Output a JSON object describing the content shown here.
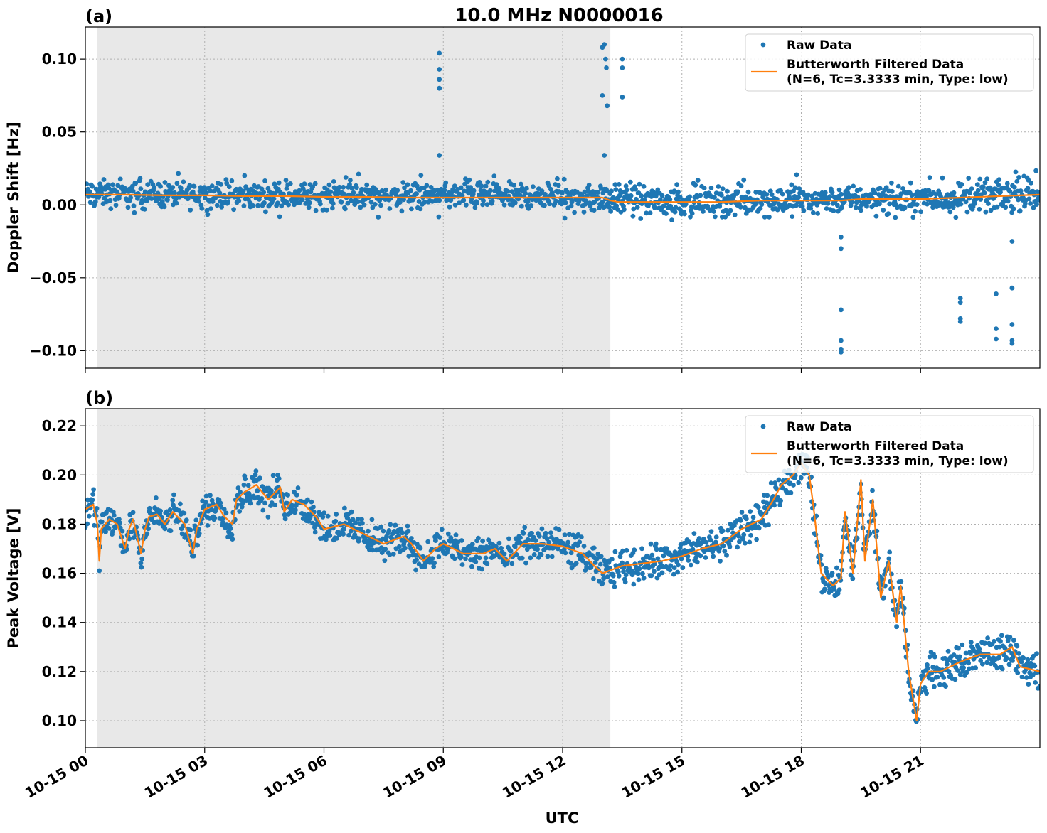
{
  "title": "10.0 MHz N0000016",
  "xlabel": "UTC",
  "x_tick_labels": [
    "10-15 00",
    "10-15 03",
    "10-15 06",
    "10-15 09",
    "10-15 12",
    "10-15 15",
    "10-15 18",
    "10-15 21"
  ],
  "legend": {
    "raw": "Raw Data",
    "filtered_line1": "Butterworth Filtered Data",
    "filtered_line2": "(N=6, Tc=3.3333 min, Type: low)"
  },
  "colors": {
    "raw": "#1f77b4",
    "filtered": "#ff7f0e",
    "shade": "#e8e8e8",
    "grid": "#b0b0b0"
  },
  "chart_data": [
    {
      "type": "scatter",
      "panel_label": "(a)",
      "title": "10.0 MHz N0000016",
      "ylabel": "Doppler Shift [Hz]",
      "xlabel": "",
      "x_unit": "hours UTC on 10-15",
      "xlim": [
        0,
        24
      ],
      "ylim": [
        -0.112,
        0.122
      ],
      "y_ticks": [
        -0.1,
        -0.05,
        0.0,
        0.05,
        0.1
      ],
      "y_tick_labels": [
        "−0.10",
        "−0.05",
        "0.00",
        "0.05",
        "0.10"
      ],
      "shaded_region": [
        0.3,
        13.2
      ],
      "grid": true,
      "legend_position": "top-right",
      "series": [
        {
          "name": "Butterworth Filtered Data",
          "x": [
            0,
            1,
            2,
            3,
            4,
            5,
            6,
            7,
            8,
            8.9,
            9.5,
            10,
            11,
            12,
            13,
            13.2,
            13.4,
            14,
            15,
            16,
            17,
            18,
            19,
            19.5,
            20,
            21,
            22,
            23,
            24
          ],
          "y": [
            0.007,
            0.007,
            0.0065,
            0.0065,
            0.006,
            0.006,
            0.0055,
            0.0055,
            0.005,
            0.005,
            0.005,
            0.005,
            0.005,
            0.005,
            0.005,
            0.003,
            0.002,
            0.002,
            0.002,
            0.002,
            0.003,
            0.003,
            0.003,
            0.004,
            0.004,
            0.004,
            0.005,
            0.006,
            0.007
          ]
        },
        {
          "name": "Raw Data",
          "band_x": [
            0,
            3,
            6,
            9,
            12,
            13.2,
            15,
            18,
            21,
            24
          ],
          "band_lo": [
            -0.006,
            -0.006,
            -0.007,
            -0.006,
            -0.007,
            -0.01,
            -0.012,
            -0.01,
            -0.01,
            -0.008
          ],
          "band_hi": [
            0.021,
            0.02,
            0.019,
            0.019,
            0.018,
            0.018,
            0.016,
            0.018,
            0.018,
            0.023
          ],
          "outliers_x": [
            8.9,
            8.9,
            8.9,
            8.9,
            8.9,
            13.0,
            13.05,
            13.08,
            13.1,
            13.12,
            13.0,
            13.05,
            13.5,
            13.5,
            13.5,
            19.0,
            19.0,
            19.0,
            19.0,
            19.0,
            19.0,
            22.0,
            22.0,
            22.0,
            22.0,
            22.9,
            22.9,
            22.9,
            23.3,
            23.3,
            23.3,
            23.3,
            23.3
          ],
          "outliers_y": [
            0.104,
            0.093,
            0.086,
            0.08,
            0.034,
            0.108,
            0.11,
            0.1,
            0.094,
            0.068,
            0.075,
            0.034,
            0.1,
            0.094,
            0.074,
            -0.022,
            -0.03,
            -0.072,
            -0.093,
            -0.099,
            -0.101,
            -0.064,
            -0.067,
            -0.078,
            -0.08,
            -0.061,
            -0.085,
            -0.092,
            -0.025,
            -0.057,
            -0.082,
            -0.093,
            -0.095
          ]
        }
      ]
    },
    {
      "type": "scatter",
      "panel_label": "(b)",
      "title": "",
      "ylabel": "Peak Voltage [V]",
      "xlabel": "UTC",
      "x_unit": "hours UTC on 10-15",
      "xlim": [
        0,
        24
      ],
      "ylim": [
        0.089,
        0.227
      ],
      "y_ticks": [
        0.1,
        0.12,
        0.14,
        0.16,
        0.18,
        0.2,
        0.22
      ],
      "y_tick_labels": [
        "0.10",
        "0.12",
        "0.14",
        "0.16",
        "0.18",
        "0.20",
        "0.22"
      ],
      "shaded_region": [
        0.3,
        13.2
      ],
      "grid": true,
      "legend_position": "top-right",
      "series": [
        {
          "name": "Butterworth Filtered Data",
          "x": [
            0,
            0.2,
            0.3,
            0.35,
            0.4,
            0.6,
            0.8,
            1.0,
            1.1,
            1.2,
            1.4,
            1.5,
            1.6,
            1.8,
            2.0,
            2.2,
            2.5,
            2.7,
            2.8,
            3.0,
            3.3,
            3.5,
            3.7,
            3.8,
            4.0,
            4.3,
            4.6,
            4.9,
            5.0,
            5.2,
            5.5,
            5.8,
            6.0,
            6.5,
            7.0,
            7.5,
            8.0,
            8.2,
            8.5,
            8.8,
            9.0,
            9.5,
            10.0,
            10.3,
            10.6,
            11.0,
            11.5,
            12.0,
            12.5,
            12.8,
            13.0,
            13.5,
            14.0,
            14.5,
            15.0,
            15.5,
            16.0,
            16.5,
            17.0,
            17.3,
            17.5,
            17.8,
            18.0,
            18.2,
            18.3,
            18.5,
            18.8,
            19.0,
            19.1,
            19.3,
            19.5,
            19.6,
            19.8,
            20.0,
            20.2,
            20.4,
            20.5,
            20.7,
            20.9,
            21.0,
            21.2,
            21.5,
            22.0,
            22.5,
            23.0,
            23.3,
            23.5,
            24.0
          ],
          "y": [
            0.186,
            0.188,
            0.18,
            0.165,
            0.178,
            0.182,
            0.18,
            0.17,
            0.178,
            0.182,
            0.168,
            0.178,
            0.183,
            0.184,
            0.18,
            0.185,
            0.18,
            0.168,
            0.178,
            0.186,
            0.188,
            0.183,
            0.18,
            0.19,
            0.193,
            0.196,
            0.19,
            0.195,
            0.185,
            0.19,
            0.188,
            0.183,
            0.178,
            0.18,
            0.176,
            0.172,
            0.175,
            0.172,
            0.165,
            0.17,
            0.172,
            0.168,
            0.168,
            0.17,
            0.165,
            0.172,
            0.172,
            0.171,
            0.168,
            0.163,
            0.16,
            0.163,
            0.164,
            0.165,
            0.167,
            0.17,
            0.172,
            0.178,
            0.182,
            0.19,
            0.196,
            0.2,
            0.205,
            0.2,
            0.188,
            0.16,
            0.155,
            0.158,
            0.185,
            0.16,
            0.198,
            0.165,
            0.19,
            0.15,
            0.165,
            0.14,
            0.155,
            0.12,
            0.1,
            0.115,
            0.12,
            0.12,
            0.124,
            0.127,
            0.127,
            0.13,
            0.122,
            0.12
          ]
        },
        {
          "name": "Raw Data",
          "band_halfwidth": 0.006
        }
      ]
    }
  ]
}
